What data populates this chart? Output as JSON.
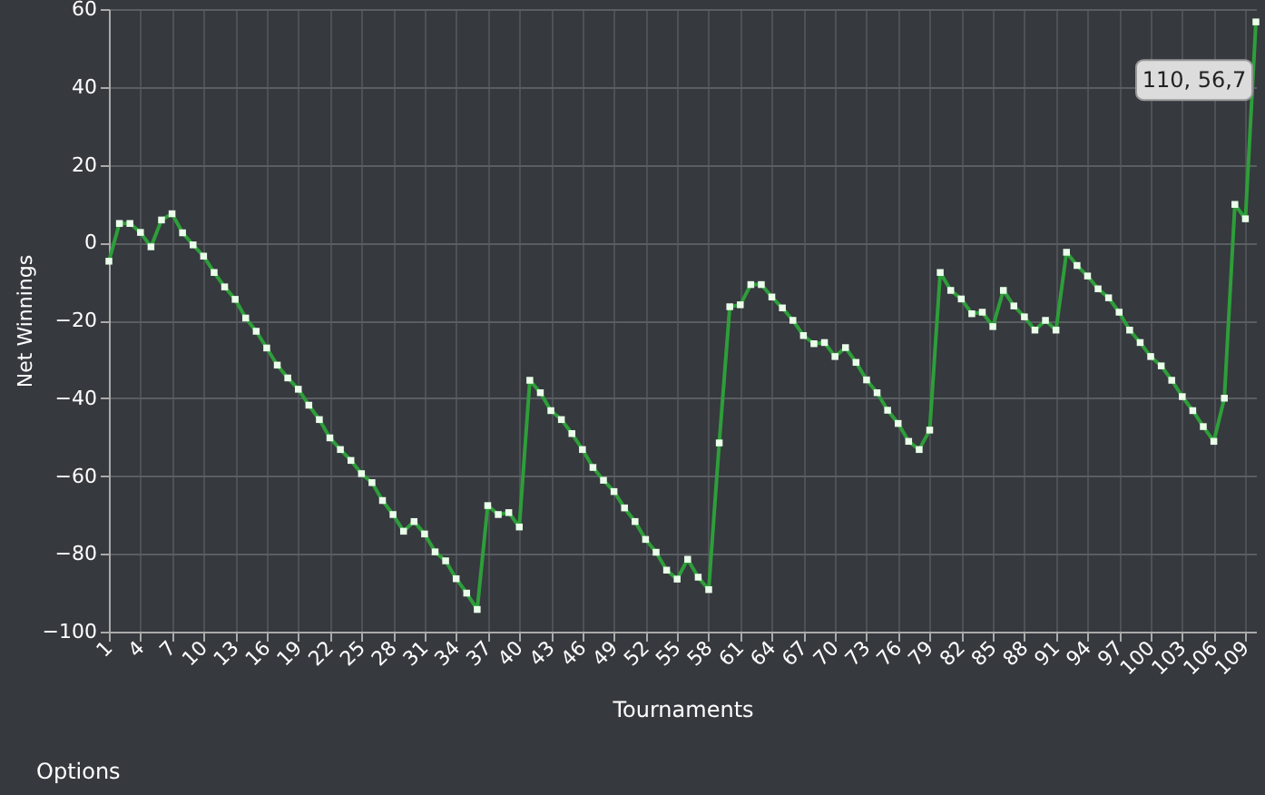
{
  "chart_data": {
    "type": "line",
    "xlabel": "Tournaments",
    "ylabel": "Net Winnings",
    "x": [
      1,
      2,
      3,
      4,
      5,
      6,
      7,
      8,
      9,
      10,
      11,
      12,
      13,
      14,
      15,
      16,
      17,
      18,
      19,
      20,
      21,
      22,
      23,
      24,
      25,
      26,
      27,
      28,
      29,
      30,
      31,
      32,
      33,
      34,
      35,
      36,
      37,
      38,
      39,
      40,
      41,
      42,
      43,
      44,
      45,
      46,
      47,
      48,
      49,
      50,
      51,
      52,
      53,
      54,
      55,
      56,
      57,
      58,
      59,
      60,
      61,
      62,
      63,
      64,
      65,
      66,
      67,
      68,
      69,
      70,
      71,
      72,
      73,
      74,
      75,
      76,
      77,
      78,
      79,
      80,
      81,
      82,
      83,
      84,
      85,
      86,
      87,
      88,
      89,
      90,
      91,
      92,
      93,
      94,
      95,
      96,
      97,
      98,
      99,
      100,
      101,
      102,
      103,
      104,
      105,
      106,
      107,
      108,
      109,
      110
    ],
    "series": [
      {
        "color": "#2e9e3a",
        "values": [
          -4.8,
          4.9,
          4.9,
          2.6,
          -1.1,
          5.8,
          7.4,
          2.5,
          -0.6,
          -3.5,
          -7.7,
          -11.4,
          -14.6,
          -19.4,
          -22.8,
          -27.1,
          -31.5,
          -34.8,
          -37.7,
          -41.8,
          -45.5,
          -50.2,
          -53.2,
          -56,
          -59.4,
          -61.7,
          -66.3,
          -69.9,
          -74.2,
          -71.7,
          -74.9,
          -79.5,
          -81.8,
          -86.4,
          -90.1,
          -94.3,
          -67.6,
          -69.9,
          -69.4,
          -73.1,
          -35.4,
          -38.6,
          -43.2,
          -45.5,
          -49.1,
          -53.2,
          -57.8,
          -61.1,
          -64,
          -68.2,
          -71.7,
          -76.3,
          -79.6,
          -84.2,
          -86.5,
          -81.4,
          -86,
          -89.2,
          -51.5,
          -16.5,
          -16,
          -10.8,
          -10.8,
          -14,
          -16.8,
          -20,
          -23.9,
          -26,
          -25.7,
          -29.3,
          -27,
          -30.8,
          -35.3,
          -38.6,
          -43.1,
          -46.5,
          -51.1,
          -53.2,
          -48.2,
          -7.7,
          -12.3,
          -14.5,
          -18.3,
          -17.9,
          -21.6,
          -12.3,
          -16.3,
          -19.1,
          -22.5,
          -20,
          -22.5,
          -2.5,
          -5.9,
          -8.6,
          -11.9,
          -14.2,
          -17.9,
          -22.5,
          -25.7,
          -29.3,
          -31.7,
          -35.4,
          -39.6,
          -43.2,
          -47.3,
          -51.1,
          -40,
          9.8,
          6.1,
          56.7
        ]
      }
    ],
    "xlim": [
      1,
      110
    ],
    "xticks": [
      1,
      4,
      7,
      10,
      13,
      16,
      19,
      22,
      25,
      28,
      31,
      34,
      37,
      40,
      43,
      46,
      49,
      52,
      55,
      58,
      61,
      64,
      67,
      70,
      73,
      76,
      79,
      82,
      85,
      88,
      91,
      94,
      97,
      100,
      103,
      106,
      109
    ],
    "ylim": [
      -100,
      60
    ],
    "yticks": [
      -100,
      -80,
      -60,
      -40,
      -20,
      0,
      20,
      40,
      60
    ],
    "grid": true,
    "marker": "square",
    "line_style": "solid",
    "annotations": [
      {
        "text": "110, 56,7",
        "x": 110,
        "y": 56.7
      },
      "Options"
    ]
  }
}
